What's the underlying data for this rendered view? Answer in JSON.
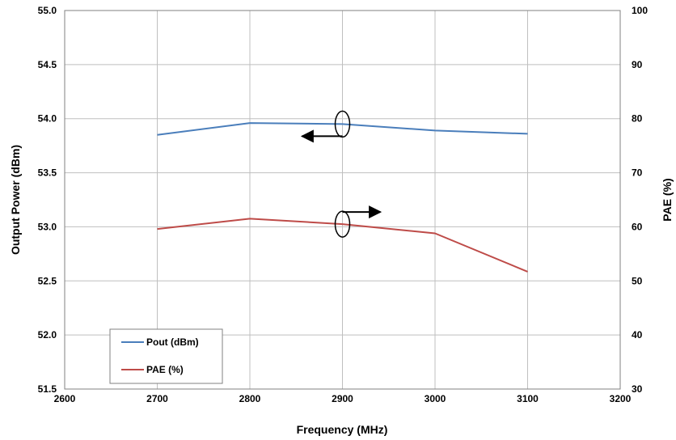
{
  "chart_data": {
    "type": "line",
    "xlabel": "Frequency (MHz)",
    "ylabel": "Output Power (dBm)",
    "y2label": "PAE (%)",
    "xlim": [
      2600,
      3200
    ],
    "ylim": [
      51.5,
      55.0
    ],
    "y2lim": [
      30,
      100
    ],
    "x_ticks": [
      "2600",
      "2700",
      "2800",
      "2900",
      "3000",
      "3100",
      "3200"
    ],
    "y_ticks": [
      "51.5",
      "52.0",
      "52.5",
      "53.0",
      "53.5",
      "54.0",
      "54.5",
      "55.0"
    ],
    "y2_ticks": [
      "30",
      "40",
      "50",
      "60",
      "70",
      "80",
      "90",
      "100"
    ],
    "grid": true,
    "legend_position": "bottom-left",
    "x": [
      2700,
      2800,
      2900,
      3000,
      3100
    ],
    "series": [
      {
        "name": "Pout (dBm)",
        "axis": "left",
        "color": "#4a7ebb",
        "values": [
          53.85,
          53.96,
          53.95,
          53.89,
          53.86
        ]
      },
      {
        "name": "PAE (%)",
        "axis": "right",
        "color": "#be4b48",
        "values": [
          59.6,
          61.5,
          60.5,
          58.8,
          51.7
        ]
      }
    ],
    "annotations": [
      {
        "type": "axis-indicator",
        "series": "Pout (dBm)",
        "direction": "left"
      },
      {
        "type": "axis-indicator",
        "series": "PAE (%)",
        "direction": "right"
      }
    ]
  }
}
